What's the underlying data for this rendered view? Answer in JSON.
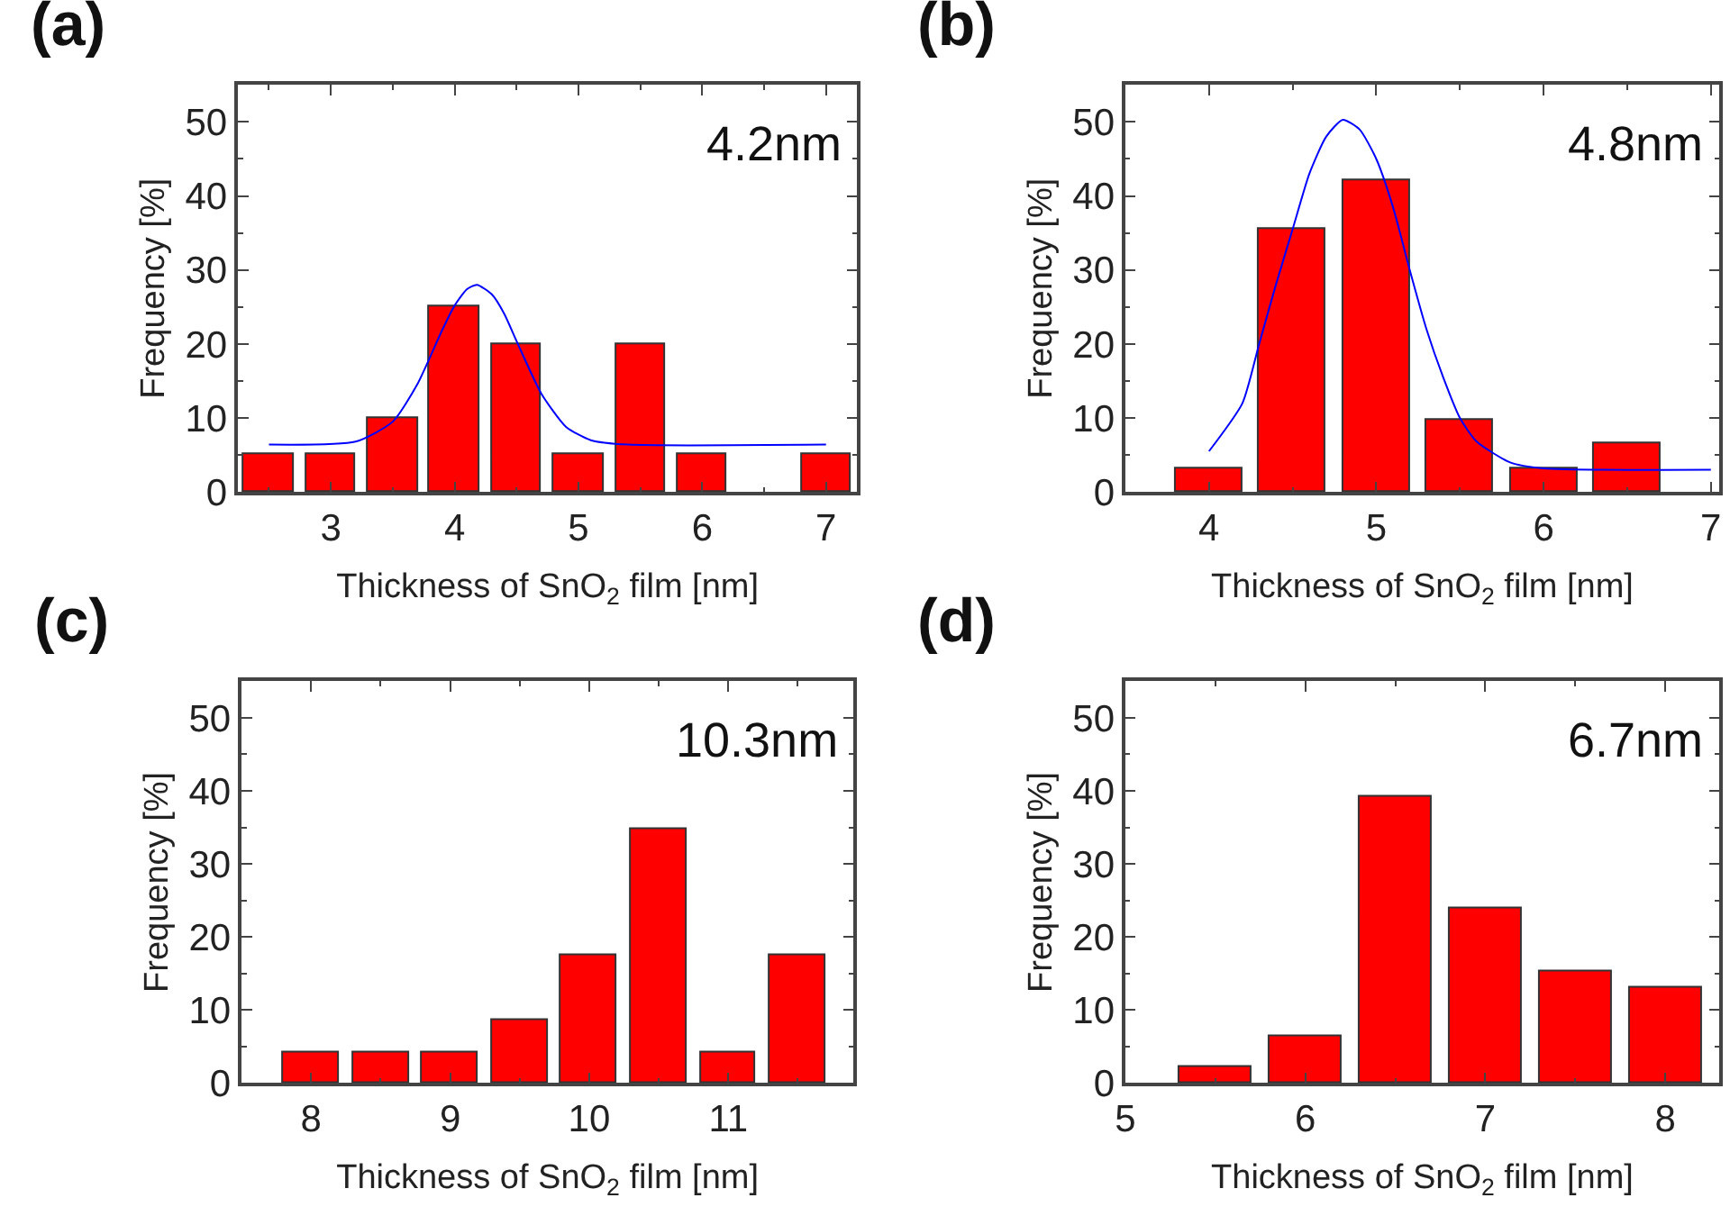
{
  "chart_data": [
    {
      "type": "histogram",
      "title": "(a)",
      "xlabel": "Thickness of SnO$_{2}$ film [nm]",
      "ylabel": "Frequency [%]",
      "annotations": [
        "4.2nm"
      ],
      "color": "#ff0000",
      "bins": [
        2.25,
        2.75,
        3.25,
        3.75,
        4.25,
        4.75,
        5.25,
        5.75,
        6.25,
        6.75,
        7.25
      ],
      "values": [
        5,
        5,
        10,
        25,
        20,
        5,
        20,
        5,
        0,
        5
      ],
      "series": [
        {
          "type": "line",
          "color": "#0000ff",
          "x": [
            2.5,
            3.2,
            3.5,
            3.7,
            3.9,
            4.0,
            4.1,
            4.18,
            4.3,
            4.4,
            4.5,
            4.7,
            4.9,
            5.1,
            5.4,
            7.0
          ],
          "values": [
            6.4,
            6.8,
            9.5,
            14.6,
            21.9,
            25.2,
            27.4,
            28,
            26.7,
            24.1,
            20.4,
            13.3,
            8.8,
            7.0,
            6.4,
            6.4
          ]
        }
      ],
      "xlim": [
        2.25,
        7.25
      ],
      "xticks": [
        3,
        4,
        5,
        6,
        7
      ],
      "ylim": [
        0,
        55
      ],
      "yticks": [
        0,
        10,
        20,
        30,
        40,
        50
      ]
    },
    {
      "type": "histogram",
      "title": "(b)",
      "xlabel": "Thickness of SnO$_{2}$ film [nm]",
      "ylabel": "Frequency [%]",
      "annotations": [
        "4.8nm"
      ],
      "color": "#ff0000",
      "bins": [
        3.75,
        4.25,
        4.75,
        5.25,
        5.75,
        6.25,
        6.75
      ],
      "values": [
        3.2,
        35.5,
        42,
        9.7,
        3.2,
        6.5
      ],
      "series": [
        {
          "type": "line",
          "color": "#0000ff",
          "x": [
            4.0,
            4.2,
            4.3,
            4.4,
            4.5,
            4.6,
            4.7,
            4.8,
            4.9,
            5.0,
            5.1,
            5.2,
            5.3,
            5.4,
            5.5,
            5.6,
            5.8,
            6.0,
            7.0
          ],
          "values": [
            5.5,
            12,
            20,
            28,
            35.5,
            43,
            48,
            50.3,
            49,
            45,
            38.5,
            30,
            22,
            15.5,
            10,
            6.8,
            4,
            3.2,
            3
          ]
        }
      ],
      "xlim": [
        3.5,
        7.05
      ],
      "xticks": [
        4,
        5,
        6,
        7
      ],
      "ylim": [
        0,
        55
      ],
      "yticks": [
        0,
        10,
        20,
        30,
        40,
        50
      ]
    },
    {
      "type": "histogram",
      "title": "(c)",
      "xlabel": "Thickness of SnO$_{2}$ film [nm]",
      "ylabel": "Frequency [%]",
      "annotations": [
        "10.3nm"
      ],
      "color": "#ff0000",
      "bins": [
        7.75,
        8.25,
        8.75,
        9.25,
        9.75,
        10.25,
        10.75,
        11.25,
        11.75
      ],
      "values": [
        4.3,
        4.3,
        4.3,
        8.7,
        17.4,
        34.8,
        4.3,
        17.4
      ],
      "xlim": [
        7.5,
        11.9
      ],
      "xticks": [
        8,
        9,
        10,
        11
      ],
      "ylim": [
        0,
        55
      ],
      "yticks": [
        0,
        10,
        20,
        30,
        40,
        50
      ]
    },
    {
      "type": "histogram",
      "title": "(d)",
      "xlabel": "Thickness of SnO$_{2}$ film [nm]",
      "ylabel": "Frequency [%]",
      "annotations": [
        "6.7nm"
      ],
      "color": "#ff0000",
      "bins": [
        5.25,
        5.75,
        6.25,
        6.75,
        7.25,
        7.75,
        8.25
      ],
      "values": [
        2.2,
        6.5,
        39.1,
        23.9,
        15.2,
        13.0
      ],
      "xlim": [
        5,
        8.3
      ],
      "xticks": [
        5,
        6,
        7,
        8
      ],
      "ylim": [
        0,
        55
      ],
      "yticks": [
        0,
        10,
        20,
        30,
        40,
        50
      ]
    }
  ]
}
